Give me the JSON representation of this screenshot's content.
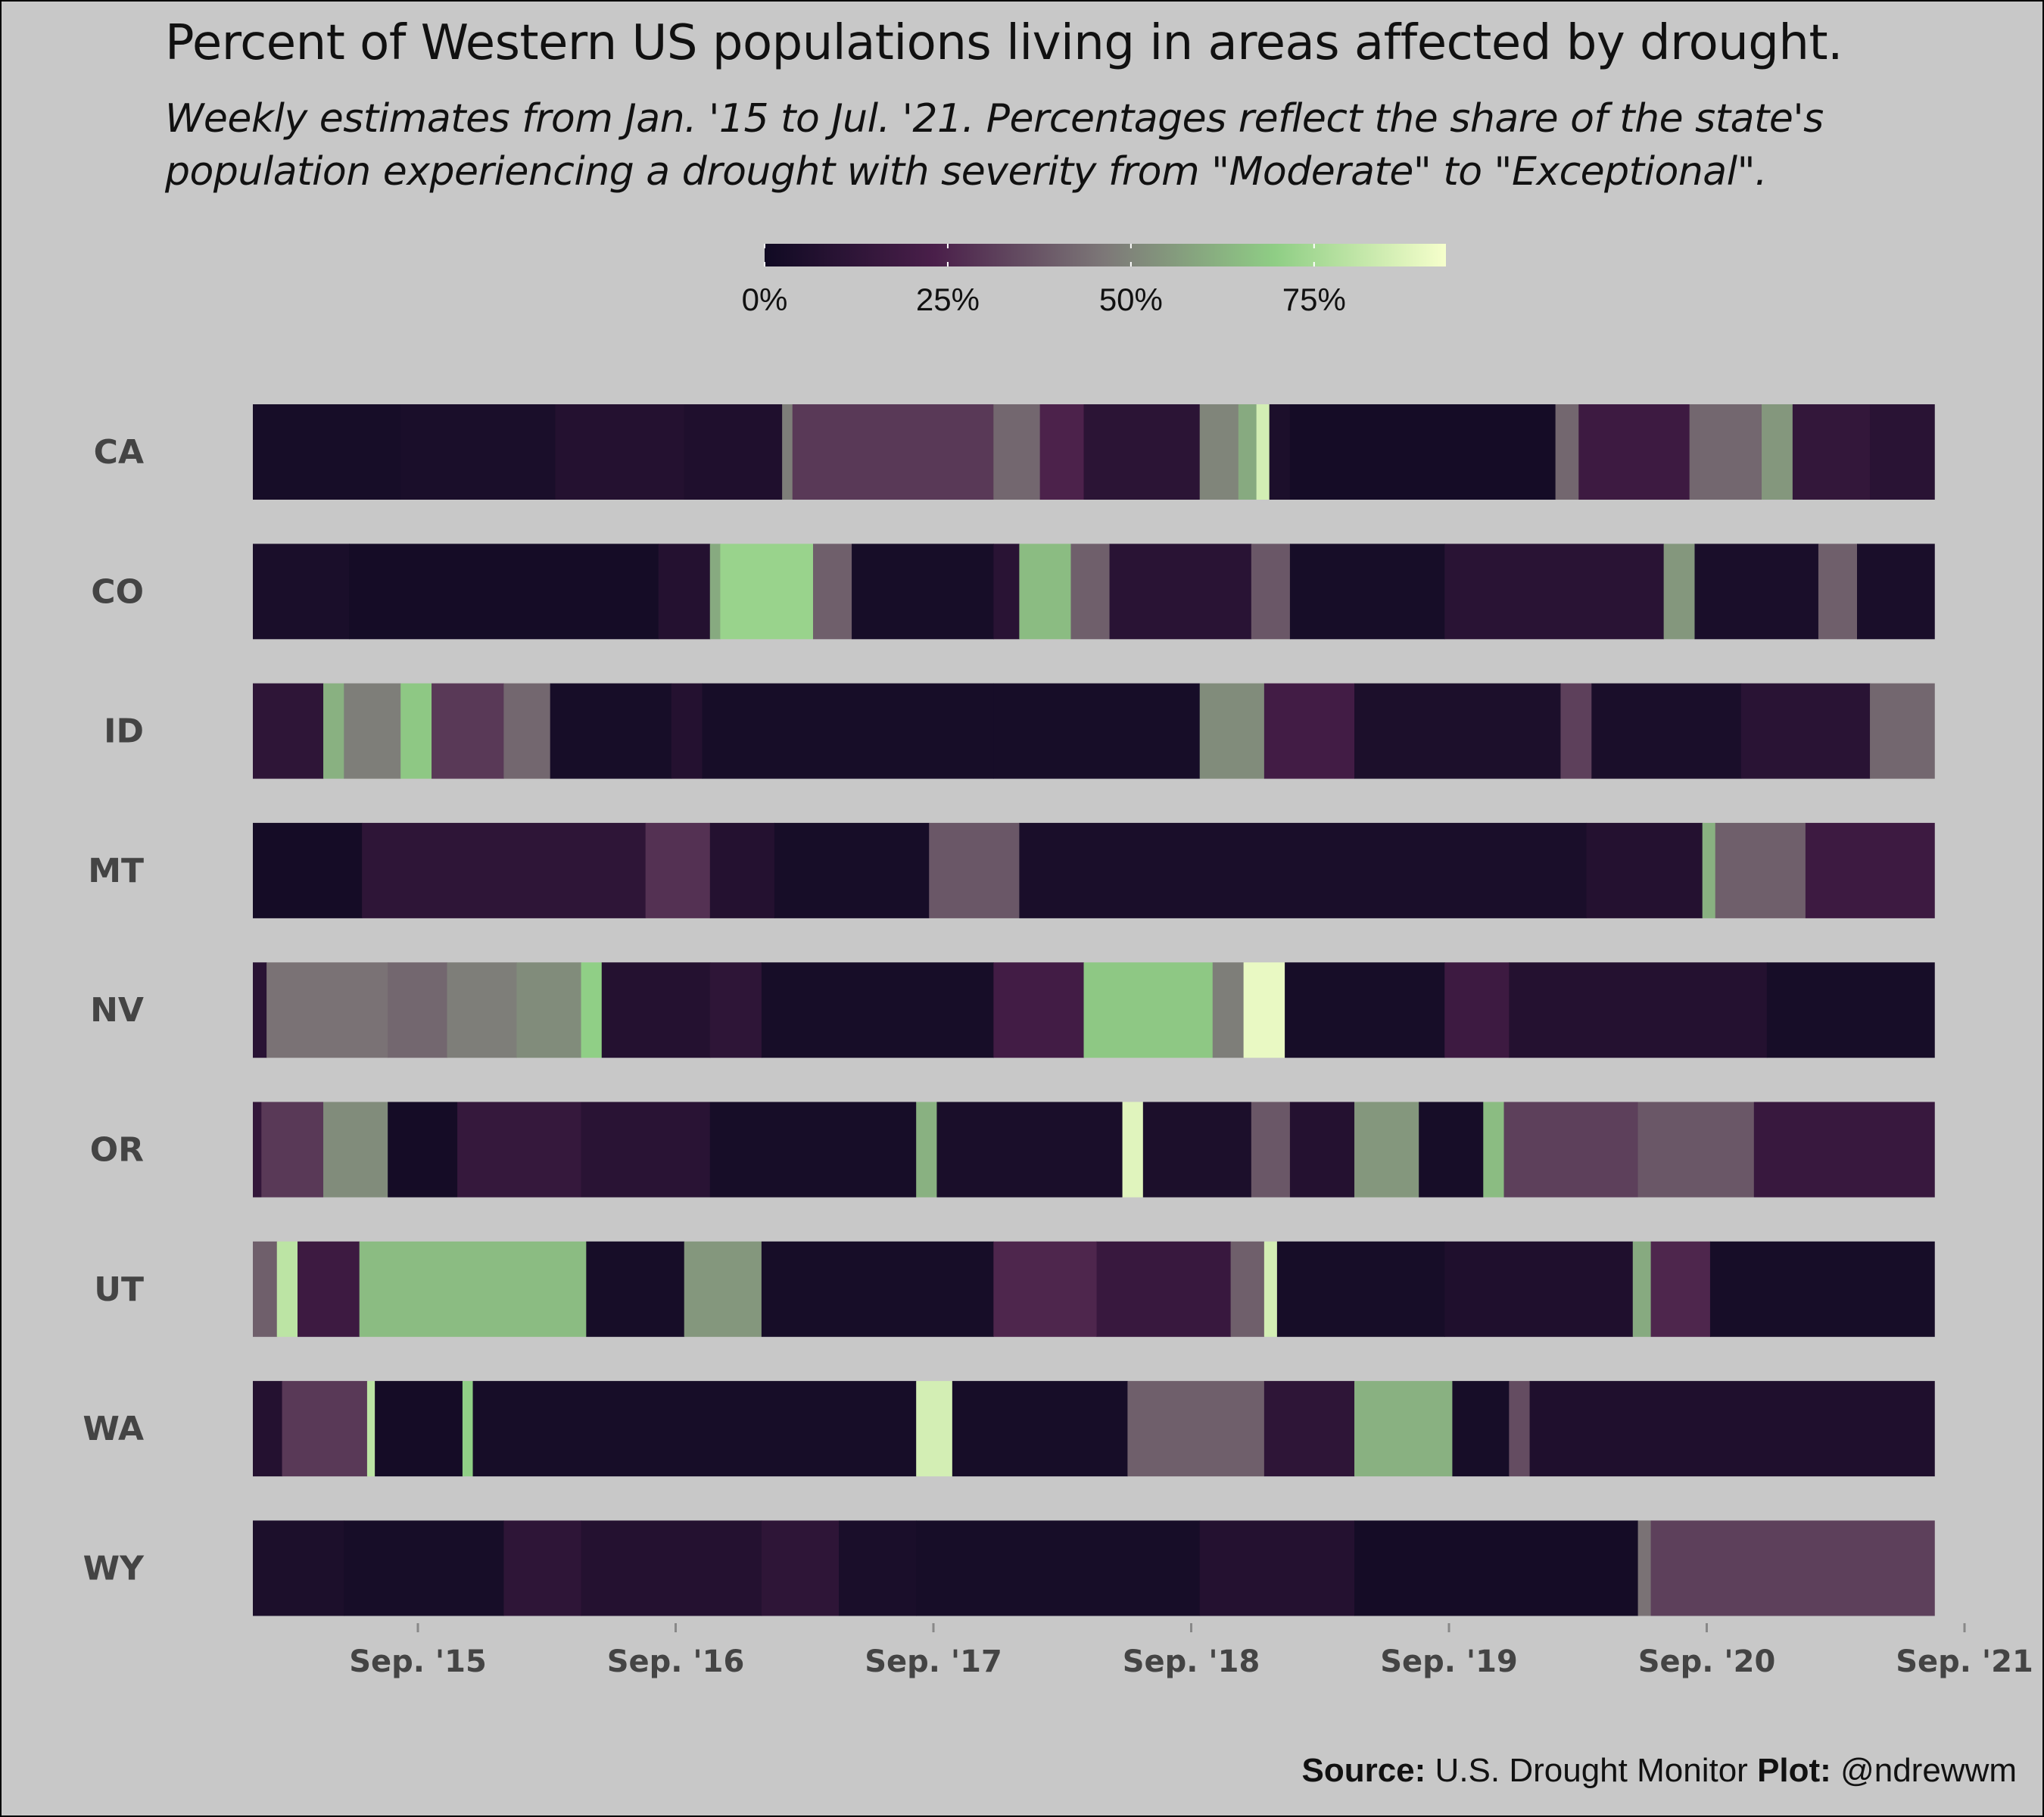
{
  "title": "Percent of Western US populations living in areas affected by drought.",
  "subtitle": [
    "Weekly estimates from Jan. '15 to Jul. '21. Percentages reflect the share of the state's",
    "population experiencing a drought with severity from \"Moderate\" to \"Exceptional\"."
  ],
  "caption": {
    "source_label": "Source:",
    "source_text": "U.S. Drought Monitor",
    "plot_label": "Plot:",
    "plot_text": "@ndrewwm"
  },
  "colors": {
    "background": "#c8c8c8",
    "scale": [
      "#100a23",
      "#4a1f4a",
      "#7d7878",
      "#8fce85",
      "#f6ffcc"
    ]
  },
  "chart_data": {
    "type": "heatmap",
    "title": "Percent of Western US populations living in areas affected by drought.",
    "x_range": [
      "2015-01",
      "2021-07"
    ],
    "x_ticks": [
      "Sep. '15",
      "Sep. '16",
      "Sep. '17",
      "Sep. '18",
      "Sep. '19",
      "Sep. '20",
      "Sep. '21"
    ],
    "x_tick_dates": [
      2015.667,
      2016.667,
      2017.667,
      2018.667,
      2019.667,
      2020.667,
      2021.667
    ],
    "legend": {
      "position": "top",
      "range": [
        0,
        93
      ],
      "ticks": [
        "0%",
        "25%",
        "50%",
        "75%"
      ],
      "tick_values": [
        0,
        25,
        50,
        75
      ]
    },
    "rows": [
      "CA",
      "CO",
      "ID",
      "MT",
      "NV",
      "OR",
      "UT",
      "WA",
      "WY"
    ],
    "series": [
      {
        "name": "CA",
        "segments": [
          [
            2015.0,
            2015.6,
            3
          ],
          [
            2015.6,
            2016.2,
            4
          ],
          [
            2016.2,
            2016.7,
            8
          ],
          [
            2016.7,
            2017.08,
            6
          ],
          [
            2017.08,
            2017.12,
            48
          ],
          [
            2017.12,
            2017.9,
            30
          ],
          [
            2017.9,
            2018.08,
            42
          ],
          [
            2018.08,
            2018.25,
            24
          ],
          [
            2018.25,
            2018.7,
            11
          ],
          [
            2018.7,
            2018.85,
            50
          ],
          [
            2018.85,
            2018.92,
            60
          ],
          [
            2018.92,
            2018.97,
            85
          ],
          [
            2018.97,
            2019.05,
            5
          ],
          [
            2019.05,
            2020.08,
            2
          ],
          [
            2020.08,
            2020.17,
            42
          ],
          [
            2020.17,
            2020.6,
            18
          ],
          [
            2020.6,
            2020.88,
            42
          ],
          [
            2020.88,
            2021.0,
            55
          ],
          [
            2021.0,
            2021.3,
            14
          ],
          [
            2021.3,
            2021.55,
            10
          ]
        ]
      },
      {
        "name": "CO",
        "segments": [
          [
            2015.0,
            2015.4,
            4
          ],
          [
            2015.4,
            2016.6,
            2
          ],
          [
            2016.6,
            2016.8,
            8
          ],
          [
            2016.8,
            2016.84,
            60
          ],
          [
            2016.84,
            2017.2,
            72
          ],
          [
            2017.2,
            2017.35,
            40
          ],
          [
            2017.35,
            2017.9,
            3
          ],
          [
            2017.9,
            2018.0,
            10
          ],
          [
            2018.0,
            2018.2,
            65
          ],
          [
            2018.2,
            2018.35,
            40
          ],
          [
            2018.35,
            2018.9,
            10
          ],
          [
            2018.9,
            2019.05,
            38
          ],
          [
            2019.05,
            2019.65,
            3
          ],
          [
            2019.65,
            2020.5,
            10
          ],
          [
            2020.5,
            2020.62,
            55
          ],
          [
            2020.62,
            2021.1,
            4
          ],
          [
            2021.1,
            2021.25,
            40
          ],
          [
            2021.25,
            2021.55,
            4
          ]
        ]
      },
      {
        "name": "ID",
        "segments": [
          [
            2015.0,
            2015.3,
            12
          ],
          [
            2015.3,
            2015.38,
            62
          ],
          [
            2015.38,
            2015.6,
            48
          ],
          [
            2015.6,
            2015.72,
            68
          ],
          [
            2015.72,
            2016.0,
            30
          ],
          [
            2016.0,
            2016.18,
            42
          ],
          [
            2016.18,
            2016.65,
            3
          ],
          [
            2016.65,
            2016.77,
            8
          ],
          [
            2016.77,
            2017.9,
            3
          ],
          [
            2017.9,
            2018.7,
            3
          ],
          [
            2018.7,
            2018.95,
            52
          ],
          [
            2018.95,
            2019.3,
            20
          ],
          [
            2019.3,
            2020.1,
            5
          ],
          [
            2020.1,
            2020.22,
            32
          ],
          [
            2020.22,
            2020.8,
            4
          ],
          [
            2020.8,
            2021.3,
            10
          ],
          [
            2021.3,
            2021.55,
            42
          ]
        ]
      },
      {
        "name": "MT",
        "segments": [
          [
            2015.0,
            2015.45,
            2
          ],
          [
            2015.45,
            2016.55,
            12
          ],
          [
            2016.55,
            2016.8,
            28
          ],
          [
            2016.8,
            2017.05,
            8
          ],
          [
            2017.05,
            2017.65,
            3
          ],
          [
            2017.65,
            2018.0,
            38
          ],
          [
            2018.0,
            2020.2,
            4
          ],
          [
            2020.2,
            2020.65,
            8
          ],
          [
            2020.65,
            2020.7,
            62
          ],
          [
            2020.7,
            2021.05,
            40
          ],
          [
            2021.05,
            2021.55,
            18
          ]
        ]
      },
      {
        "name": "NV",
        "segments": [
          [
            2015.0,
            2015.08,
            10
          ],
          [
            2015.08,
            2015.55,
            45
          ],
          [
            2015.55,
            2015.78,
            42
          ],
          [
            2015.78,
            2016.05,
            48
          ],
          [
            2016.05,
            2016.3,
            52
          ],
          [
            2016.3,
            2016.38,
            70
          ],
          [
            2016.38,
            2016.8,
            8
          ],
          [
            2016.8,
            2017.0,
            12
          ],
          [
            2017.0,
            2017.9,
            3
          ],
          [
            2017.9,
            2018.25,
            20
          ],
          [
            2018.25,
            2018.75,
            68
          ],
          [
            2018.75,
            2018.87,
            48
          ],
          [
            2018.87,
            2019.03,
            90
          ],
          [
            2019.03,
            2019.65,
            3
          ],
          [
            2019.65,
            2019.9,
            18
          ],
          [
            2019.9,
            2020.9,
            8
          ],
          [
            2020.9,
            2021.55,
            3
          ]
        ]
      },
      {
        "name": "OR",
        "segments": [
          [
            2015.0,
            2015.06,
            14
          ],
          [
            2015.06,
            2015.3,
            30
          ],
          [
            2015.3,
            2015.55,
            52
          ],
          [
            2015.55,
            2015.82,
            2
          ],
          [
            2015.82,
            2016.3,
            15
          ],
          [
            2016.3,
            2016.8,
            10
          ],
          [
            2016.8,
            2017.6,
            3
          ],
          [
            2017.6,
            2017.68,
            62
          ],
          [
            2017.68,
            2018.4,
            4
          ],
          [
            2018.4,
            2018.48,
            88
          ],
          [
            2018.48,
            2018.9,
            5
          ],
          [
            2018.9,
            2019.05,
            38
          ],
          [
            2019.05,
            2019.3,
            8
          ],
          [
            2019.3,
            2019.55,
            55
          ],
          [
            2019.55,
            2019.8,
            3
          ],
          [
            2019.8,
            2019.88,
            65
          ],
          [
            2019.88,
            2020.4,
            32
          ],
          [
            2020.4,
            2020.85,
            38
          ],
          [
            2020.85,
            2021.55,
            16
          ]
        ]
      },
      {
        "name": "UT",
        "segments": [
          [
            2015.0,
            2015.12,
            40
          ],
          [
            2015.12,
            2015.2,
            80
          ],
          [
            2015.2,
            2015.44,
            18
          ],
          [
            2015.44,
            2016.32,
            65
          ],
          [
            2016.32,
            2016.7,
            3
          ],
          [
            2016.7,
            2017.0,
            55
          ],
          [
            2017.0,
            2017.9,
            3
          ],
          [
            2017.9,
            2018.3,
            25
          ],
          [
            2018.3,
            2018.82,
            16
          ],
          [
            2018.82,
            2018.95,
            40
          ],
          [
            2018.95,
            2019.0,
            85
          ],
          [
            2019.0,
            2019.65,
            3
          ],
          [
            2019.65,
            2020.38,
            6
          ],
          [
            2020.38,
            2020.45,
            60
          ],
          [
            2020.45,
            2020.68,
            25
          ],
          [
            2020.68,
            2021.55,
            3
          ]
        ]
      },
      {
        "name": "WA",
        "segments": [
          [
            2015.0,
            2015.14,
            8
          ],
          [
            2015.14,
            2015.47,
            30
          ],
          [
            2015.47,
            2015.5,
            80
          ],
          [
            2015.5,
            2015.84,
            2
          ],
          [
            2015.84,
            2015.88,
            70
          ],
          [
            2015.88,
            2017.6,
            3
          ],
          [
            2017.6,
            2017.74,
            85
          ],
          [
            2017.74,
            2018.42,
            3
          ],
          [
            2018.42,
            2018.95,
            40
          ],
          [
            2018.95,
            2019.3,
            12
          ],
          [
            2019.3,
            2019.68,
            62
          ],
          [
            2019.68,
            2019.9,
            3
          ],
          [
            2019.9,
            2019.98,
            35
          ],
          [
            2019.98,
            2021.55,
            6
          ]
        ]
      },
      {
        "name": "WY",
        "segments": [
          [
            2015.0,
            2015.38,
            5
          ],
          [
            2015.38,
            2016.0,
            3
          ],
          [
            2016.0,
            2016.3,
            12
          ],
          [
            2016.3,
            2017.0,
            8
          ],
          [
            2017.0,
            2017.3,
            12
          ],
          [
            2017.3,
            2017.6,
            4
          ],
          [
            2017.6,
            2018.7,
            3
          ],
          [
            2018.7,
            2019.3,
            8
          ],
          [
            2019.3,
            2020.4,
            2
          ],
          [
            2020.4,
            2020.45,
            45
          ],
          [
            2020.45,
            2021.55,
            32
          ]
        ]
      }
    ]
  }
}
